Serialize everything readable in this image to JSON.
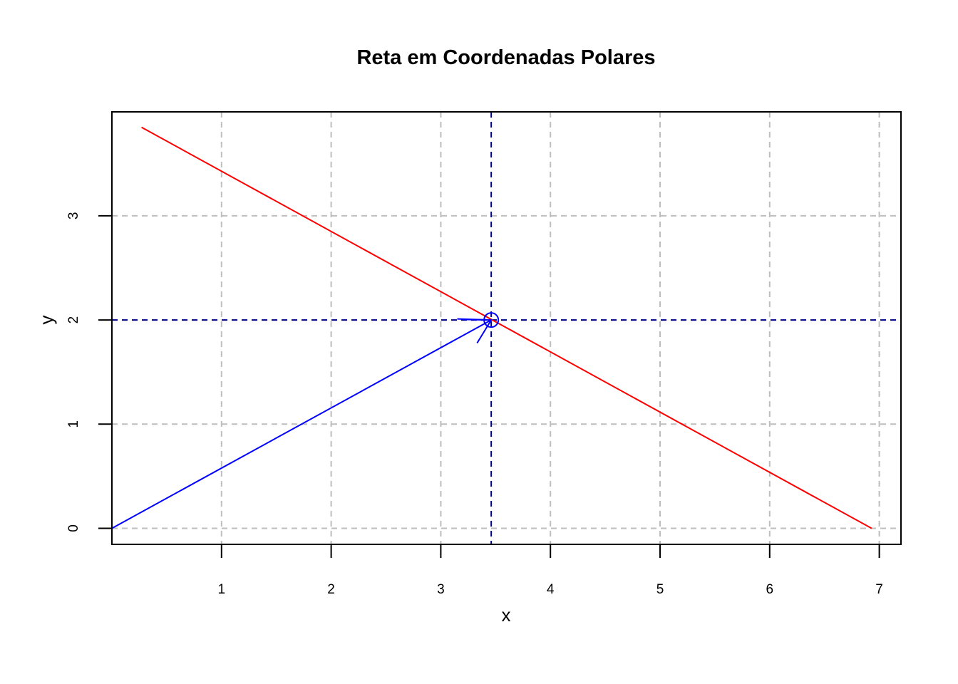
{
  "chart_data": {
    "type": "line",
    "title": "Reta em Coordenadas Polares",
    "xlabel": "x",
    "ylabel": "y",
    "xlim": [
      0,
      7.2
    ],
    "ylim": [
      -0.15,
      4.0
    ],
    "x_ticks": [
      1,
      2,
      3,
      4,
      5,
      6,
      7
    ],
    "y_ticks": [
      0,
      1,
      2,
      3
    ],
    "grid": true,
    "series": [
      {
        "color": "#ff0000",
        "style": "solid",
        "x": [
          0.27,
          6.93
        ],
        "y": [
          3.85,
          0.0
        ]
      },
      {
        "color": "#0000ff",
        "style": "arrow",
        "x": [
          0.0,
          3.46
        ],
        "y": [
          0.0,
          2.0
        ]
      }
    ],
    "reference_lines": {
      "color": "#00008b",
      "style": "dashed",
      "vertical_x": 3.46,
      "horizontal_y": 2.0
    },
    "point": {
      "x": 3.46,
      "y": 2.0,
      "color": "#0000ff",
      "marker": "open-circle"
    },
    "short_arrow": {
      "color": "#0000ff",
      "x": [
        3.15,
        3.46
      ],
      "y": [
        2.01,
        2.0
      ]
    }
  }
}
